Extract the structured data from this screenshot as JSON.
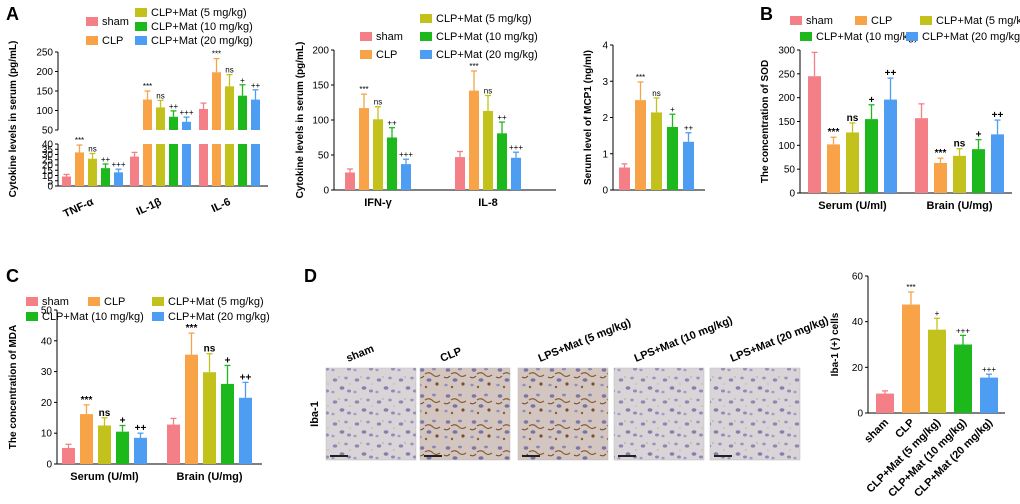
{
  "panel_labels": [
    "A",
    "B",
    "C",
    "D"
  ],
  "colors": {
    "sham": "#f47f86",
    "CLP": "#f8a347",
    "mat5": "#c3c21c",
    "mat10": "#1cb81c",
    "mat20": "#4d9ef2"
  },
  "legend": {
    "groups": [
      "sham",
      "CLP",
      "CLP+Mat (5 mg/kg)",
      "CLP+Mat (10 mg/kg)",
      "CLP+Mat (20 mg/kg)"
    ]
  },
  "chart_data": [
    {
      "id": "A1",
      "type": "bar",
      "ylabel": "Cytokine levels in serum (pg/mL)",
      "broken_axis": true,
      "y_ticks": [
        "0",
        "5",
        "10",
        "15",
        "20",
        "25",
        "30",
        "35",
        "40",
        "50",
        "100",
        "150",
        "200",
        "250"
      ],
      "categories": [
        "TNF-α",
        "IL-1β",
        "IL-6"
      ],
      "series": [
        {
          "name": "sham",
          "values": [
            9,
            28,
            104
          ],
          "errors": [
            2,
            4,
            15
          ]
        },
        {
          "name": "CLP",
          "values": [
            32,
            128,
            198
          ],
          "errors": [
            7,
            22,
            35
          ]
        },
        {
          "name": "CLP+Mat (5 mg/kg)",
          "values": [
            26,
            108,
            162
          ],
          "errors": [
            5,
            18,
            30
          ]
        },
        {
          "name": "CLP+Mat (10 mg/kg)",
          "values": [
            17,
            84,
            138
          ],
          "errors": [
            4,
            15,
            28
          ]
        },
        {
          "name": "CLP+Mat (20 mg/kg)",
          "values": [
            13,
            71,
            128
          ],
          "errors": [
            3,
            12,
            25
          ]
        }
      ],
      "significance": [
        [
          "",
          "***",
          "ns",
          "++",
          "+++"
        ],
        [
          "",
          "***",
          "ns",
          "++",
          "+++"
        ],
        [
          "",
          "***",
          "ns",
          "+",
          "++"
        ]
      ]
    },
    {
      "id": "A2",
      "type": "bar",
      "ylabel": "Cytokine levels in serum (pg/mL)",
      "ylim": [
        0,
        200
      ],
      "y_ticks": [
        "0",
        "50",
        "100",
        "150",
        "200"
      ],
      "categories": [
        "IFN-γ",
        "IL-8"
      ],
      "series": [
        {
          "name": "sham",
          "values": [
            25,
            47
          ],
          "errors": [
            5,
            8
          ]
        },
        {
          "name": "CLP",
          "values": [
            117,
            142
          ],
          "errors": [
            20,
            28
          ]
        },
        {
          "name": "CLP+Mat (5 mg/kg)",
          "values": [
            101,
            113
          ],
          "errors": [
            18,
            22
          ]
        },
        {
          "name": "CLP+Mat (10 mg/kg)",
          "values": [
            75,
            81
          ],
          "errors": [
            14,
            16
          ]
        },
        {
          "name": "CLP+Mat (20 mg/kg)",
          "values": [
            37,
            46
          ],
          "errors": [
            7,
            8
          ]
        }
      ],
      "significance": [
        [
          "",
          "***",
          "ns",
          "++",
          "+++"
        ],
        [
          "",
          "***",
          "ns",
          "++",
          "+++"
        ]
      ]
    },
    {
      "id": "A3",
      "type": "bar",
      "ylabel": "Serum level of MCP1 (ng/ml)",
      "ylim": [
        0,
        4
      ],
      "y_ticks": [
        "0",
        "1",
        "2",
        "3",
        "4"
      ],
      "categories": [
        ""
      ],
      "series": [
        {
          "name": "sham",
          "values": [
            0.62
          ],
          "errors": [
            0.1
          ]
        },
        {
          "name": "CLP",
          "values": [
            2.48
          ],
          "errors": [
            0.5
          ]
        },
        {
          "name": "CLP+Mat (5 mg/kg)",
          "values": [
            2.14
          ],
          "errors": [
            0.4
          ]
        },
        {
          "name": "CLP+Mat (10 mg/kg)",
          "values": [
            1.74
          ],
          "errors": [
            0.35
          ]
        },
        {
          "name": "CLP+Mat (20 mg/kg)",
          "values": [
            1.33
          ],
          "errors": [
            0.25
          ]
        }
      ],
      "significance": [
        [
          "",
          "***",
          "ns",
          "+",
          "++"
        ]
      ]
    },
    {
      "id": "B",
      "type": "bar",
      "ylabel": "The concentration of SOD",
      "ylim": [
        0,
        300
      ],
      "y_ticks": [
        "0",
        "50",
        "100",
        "150",
        "200",
        "250",
        "300"
      ],
      "categories": [
        "Serum (U/ml)",
        "Brain (U/mg)"
      ],
      "series": [
        {
          "name": "sham",
          "values": [
            245,
            157
          ],
          "errors": [
            50,
            30
          ]
        },
        {
          "name": "CLP",
          "values": [
            102,
            63
          ],
          "errors": [
            15,
            10
          ]
        },
        {
          "name": "CLP+Mat (5 mg/kg)",
          "values": [
            127,
            78
          ],
          "errors": [
            20,
            15
          ]
        },
        {
          "name": "CLP+Mat (10 mg/kg)",
          "values": [
            155,
            92
          ],
          "errors": [
            30,
            20
          ]
        },
        {
          "name": "CLP+Mat (20 mg/kg)",
          "values": [
            196,
            123
          ],
          "errors": [
            45,
            30
          ]
        }
      ],
      "significance": [
        [
          "",
          "***",
          "ns",
          "+",
          "++"
        ],
        [
          "",
          "***",
          "ns",
          "+",
          "++"
        ]
      ]
    },
    {
      "id": "C",
      "type": "bar",
      "ylabel": "The concentration of MDA",
      "ylim": [
        0,
        50
      ],
      "y_ticks": [
        "0",
        "10",
        "20",
        "30",
        "40",
        "50"
      ],
      "categories": [
        "Serum (U/ml)",
        "Brain (U/mg)"
      ],
      "series": [
        {
          "name": "sham",
          "values": [
            5.2,
            12.8
          ],
          "errors": [
            1.2,
            2
          ]
        },
        {
          "name": "CLP",
          "values": [
            16.2,
            35.5
          ],
          "errors": [
            3,
            7
          ]
        },
        {
          "name": "CLP+Mat (5 mg/kg)",
          "values": [
            12.5,
            29.8
          ],
          "errors": [
            2.5,
            6
          ]
        },
        {
          "name": "CLP+Mat (10 mg/kg)",
          "values": [
            10.5,
            26
          ],
          "errors": [
            2,
            6
          ]
        },
        {
          "name": "CLP+Mat (20 mg/kg)",
          "values": [
            8.5,
            21.5
          ],
          "errors": [
            1.5,
            5
          ]
        }
      ],
      "significance": [
        [
          "",
          "***",
          "ns",
          "+",
          "++"
        ],
        [
          "",
          "***",
          "ns",
          "+",
          "++"
        ]
      ]
    },
    {
      "id": "D",
      "type": "bar",
      "ylabel": "Iba-1 (+) cells",
      "ylim": [
        0,
        60
      ],
      "y_ticks": [
        "0",
        "20",
        "40",
        "60"
      ],
      "categories": [
        "sham",
        "CLP",
        "CLP+Mat (5 mg/kg)",
        "CLP+Mat (10 mg/kg)",
        "CLP+Mat (20 mg/kg)"
      ],
      "values": [
        8.5,
        47.5,
        36.5,
        30,
        15.5
      ],
      "errors": [
        1.2,
        5.5,
        5,
        4,
        1.5
      ],
      "significance": [
        "",
        "***",
        "+",
        "+++",
        "+++"
      ]
    }
  ],
  "micrographs": {
    "row_label": "Iba-1",
    "labels": [
      "sham",
      "CLP",
      "LPS+Mat (5 mg/kg)",
      "LPS+Mat (10 mg/kg)",
      "LPS+Mat (20 mg/kg)"
    ]
  }
}
